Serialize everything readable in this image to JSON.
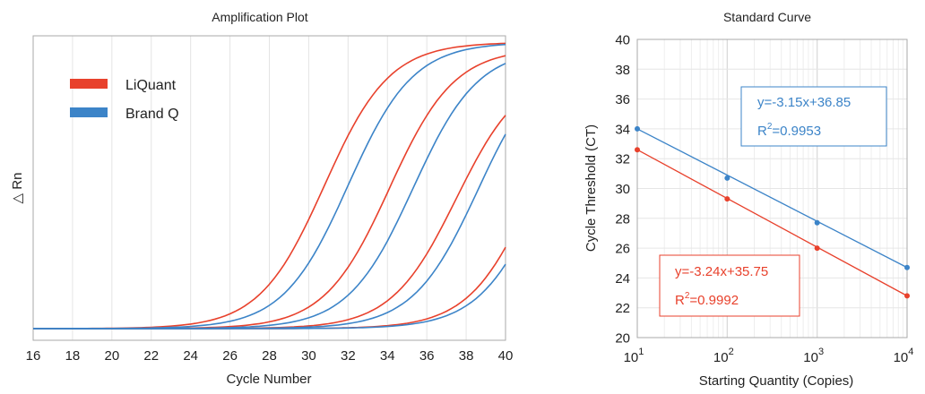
{
  "colors": {
    "liquant": "#e8412c",
    "brandq": "#3c84c8",
    "grid": "#e4e4e4",
    "frame": "#aaaaaa"
  },
  "chart_data": [
    {
      "type": "line",
      "title": "Amplification Plot",
      "xlabel": "Cycle Number",
      "ylabel": "△ Rn",
      "xlim": [
        16,
        40
      ],
      "x_ticks": [
        "16",
        "18",
        "20",
        "22",
        "24",
        "26",
        "28",
        "30",
        "32",
        "34",
        "36",
        "38",
        "40"
      ],
      "legend": {
        "position": "top-left",
        "entries": [
          {
            "name": "LiQuant",
            "color": "#e8412c"
          },
          {
            "name": "Brand Q",
            "color": "#3c84c8"
          }
        ]
      },
      "series": [
        {
          "name": "LiQuant",
          "curves": [
            {
              "midpoint_cycle": 30.8,
              "plateau": 0.99
            },
            {
              "midpoint_cycle": 34.1,
              "plateau": 0.97
            },
            {
              "midpoint_cycle": 37.5,
              "plateau": 0.9
            },
            {
              "midpoint_cycle": 41.5,
              "plateau": 0.98
            }
          ]
        },
        {
          "name": "Brand Q",
          "curves": [
            {
              "midpoint_cycle": 32.0,
              "plateau": 0.99
            },
            {
              "midpoint_cycle": 35.3,
              "plateau": 0.97
            },
            {
              "midpoint_cycle": 38.6,
              "plateau": 0.96
            },
            {
              "midpoint_cycle": 42.0,
              "plateau": 0.97
            }
          ]
        }
      ]
    },
    {
      "type": "scatter",
      "title": "Standard Curve",
      "xlabel": "Starting Quantity (Copies)",
      "ylabel": "Cycle Threshold (CT)",
      "xscale": "log",
      "xlim": [
        10,
        10000
      ],
      "ylim": [
        20,
        40
      ],
      "x_ticks": [
        {
          "base": "10",
          "exp": "1"
        },
        {
          "base": "10",
          "exp": "2"
        },
        {
          "base": "10",
          "exp": "3"
        },
        {
          "base": "10",
          "exp": "4"
        }
      ],
      "y_ticks": [
        "20",
        "22",
        "24",
        "26",
        "28",
        "30",
        "32",
        "34",
        "36",
        "38",
        "40"
      ],
      "series": [
        {
          "name": "Brand Q",
          "color": "#3c84c8",
          "x": [
            10,
            100,
            1000,
            10000
          ],
          "y": [
            34.0,
            30.7,
            27.7,
            24.7
          ],
          "fit": {
            "slope": -3.15,
            "intercept": 36.85
          },
          "equation": "y=-3.15x+36.85",
          "r2_label": "R",
          "r2_sup": "2",
          "r2_value": "=0.9953"
        },
        {
          "name": "LiQuant",
          "color": "#e8412c",
          "x": [
            10,
            100,
            1000,
            10000
          ],
          "y": [
            32.6,
            29.3,
            26.0,
            22.8
          ],
          "fit": {
            "slope": -3.24,
            "intercept": 35.75
          },
          "equation": "y=-3.24x+35.75",
          "r2_label": "R",
          "r2_sup": "2",
          "r2_value": "=0.9992"
        }
      ]
    }
  ]
}
